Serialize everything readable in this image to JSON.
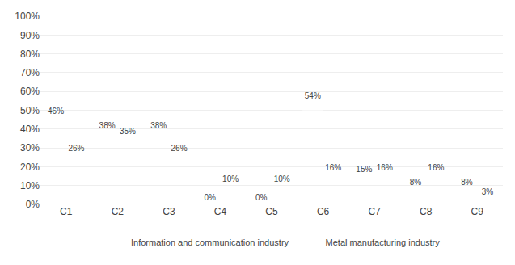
{
  "chart_data": {
    "type": "bar",
    "categories": [
      "C1",
      "C2",
      "C3",
      "C4",
      "C5",
      "C6",
      "C7",
      "C8",
      "C9"
    ],
    "series": [
      {
        "name": "Information and communication industry",
        "color": "#595959",
        "values": [
          46,
          38,
          38,
          0,
          0,
          54,
          15,
          8,
          8
        ],
        "value_labels": [
          "46%",
          "38%",
          "38%",
          "0%",
          "0%",
          "54%",
          "15%",
          "8%",
          "8%"
        ]
      },
      {
        "name": "Metal manufacturing industry",
        "color": "#bfbfbf",
        "values": [
          26,
          35,
          26,
          10,
          10,
          16,
          16,
          16,
          3
        ],
        "value_labels": [
          "26%",
          "35%",
          "26%",
          "10%",
          "10%",
          "16%",
          "16%",
          "16%",
          "3%"
        ]
      }
    ],
    "ylim": [
      0,
      100
    ],
    "yticks": [
      {
        "value": 0,
        "label": "0%"
      },
      {
        "value": 10,
        "label": "10%"
      },
      {
        "value": 20,
        "label": "20%"
      },
      {
        "value": 30,
        "label": "30%"
      },
      {
        "value": 40,
        "label": "40%"
      },
      {
        "value": 50,
        "label": "50%"
      },
      {
        "value": 60,
        "label": "60%"
      },
      {
        "value": 70,
        "label": "70%"
      },
      {
        "value": 80,
        "label": "80%"
      },
      {
        "value": 90,
        "label": "90%"
      },
      {
        "value": 100,
        "label": "100%"
      }
    ],
    "grid": true,
    "legend": "bottom",
    "data_labels": true
  }
}
